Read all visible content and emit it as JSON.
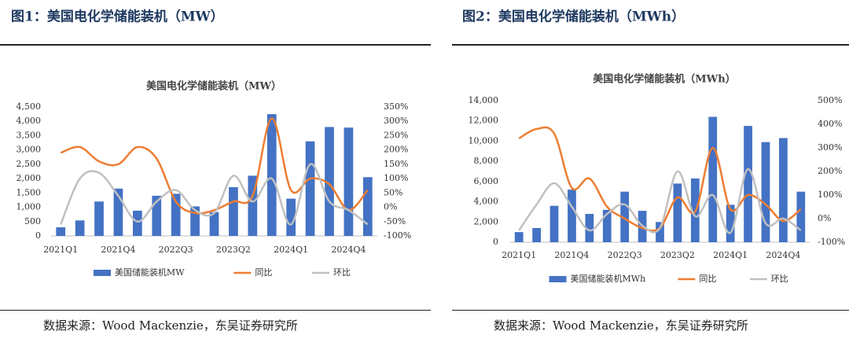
{
  "headings": [
    "图1：美国电化学储能装机（MW）",
    "图2：美国电化学储能装机（MWh）"
  ],
  "sources": [
    "数据来源：Wood Mackenzie，东吴证券研究所",
    "数据来源：Wood Mackenzie，东吴证券研究所"
  ],
  "chart_data": [
    {
      "type": "bar",
      "title": "美国电化学储能装机（MW）",
      "categories": [
        "2021Q1",
        null,
        null,
        "2021Q4",
        null,
        null,
        "2022Q3",
        null,
        null,
        "2023Q2",
        null,
        null,
        "2024Q1",
        null,
        null,
        "2024Q4",
        null
      ],
      "series": [
        {
          "name": "美国储能装机MW",
          "type": "bar",
          "color": "#4472c4",
          "values": [
            300,
            540,
            1200,
            1650,
            880,
            1400,
            1470,
            1030,
            830,
            1700,
            2100,
            4250,
            1300,
            3300,
            3800,
            3780,
            2050
          ]
        },
        {
          "name": "同比",
          "type": "line",
          "axis": "y2",
          "color": "#ed7d31",
          "values": [
            190,
            210,
            160,
            150,
            210,
            170,
            20,
            -20,
            -10,
            20,
            40,
            310,
            60,
            100,
            80,
            -10,
            60
          ]
        },
        {
          "name": "环比",
          "type": "line",
          "axis": "y2",
          "color": "#c0c0c0",
          "values": [
            -60,
            100,
            120,
            40,
            -50,
            20,
            60,
            -10,
            -20,
            110,
            20,
            100,
            -60,
            150,
            20,
            -10,
            -60
          ]
        }
      ],
      "ylim": [
        0,
        4500
      ],
      "yticks": [
        0,
        500,
        {
          "value": 1000,
          "label": "1,000"
        },
        {
          "value": 1500,
          "label": "1,500"
        },
        {
          "value": 2000,
          "label": "2,000"
        },
        {
          "value": 2500,
          "label": "2,500"
        },
        {
          "value": 3000,
          "label": "3,000"
        },
        {
          "value": 3500,
          "label": "3,500"
        },
        {
          "value": 4000,
          "label": "4,000"
        },
        {
          "value": 4500,
          "label": "4,500"
        }
      ],
      "y2lim": [
        -100,
        350
      ],
      "y2ticks": [
        {
          "value": -100,
          "label": "-100%"
        },
        {
          "value": -50,
          "label": "-50%"
        },
        {
          "value": 0,
          "label": "0%"
        },
        {
          "value": 50,
          "label": "50%"
        },
        {
          "value": 100,
          "label": "100%"
        },
        {
          "value": 150,
          "label": "150%"
        },
        {
          "value": 200,
          "label": "200%"
        },
        {
          "value": 250,
          "label": "250%"
        },
        {
          "value": 300,
          "label": "300%"
        },
        {
          "value": 350,
          "label": "350%"
        }
      ],
      "legend": "bottom"
    },
    {
      "type": "bar",
      "title": "美国电化学储能装机（MWh）",
      "categories": [
        "2021Q1",
        null,
        null,
        "2021Q4",
        null,
        null,
        "2022Q3",
        null,
        null,
        "2023Q2",
        null,
        null,
        "2024Q1",
        null,
        null,
        "2024Q4",
        null
      ],
      "series": [
        {
          "name": "美国储能装机MWh",
          "type": "bar",
          "color": "#4472c4",
          "values": [
            1000,
            1400,
            3600,
            5200,
            2800,
            3200,
            5000,
            3100,
            2000,
            5800,
            6300,
            12400,
            3700,
            11500,
            9900,
            10300,
            5000
          ]
        },
        {
          "name": "同比",
          "type": "line",
          "axis": "y2",
          "color": "#ed7d31",
          "values": [
            340,
            380,
            360,
            130,
            170,
            50,
            0,
            -40,
            -40,
            90,
            30,
            300,
            40,
            100,
            60,
            -10,
            40
          ]
        },
        {
          "name": "环比",
          "type": "line",
          "axis": "y2",
          "color": "#c0c0c0",
          "values": [
            -50,
            60,
            150,
            50,
            -50,
            20,
            60,
            -30,
            -40,
            200,
            10,
            100,
            -60,
            210,
            -20,
            0,
            -50
          ]
        }
      ],
      "ylim": [
        0,
        14000
      ],
      "yticks": [
        0,
        {
          "value": 2000,
          "label": "2,000"
        },
        {
          "value": 4000,
          "label": "4,000"
        },
        {
          "value": 6000,
          "label": "6,000"
        },
        {
          "value": 8000,
          "label": "8,000"
        },
        {
          "value": 10000,
          "label": "10,000"
        },
        {
          "value": 12000,
          "label": "12,000"
        },
        {
          "value": 14000,
          "label": "14,000"
        }
      ],
      "y2lim": [
        -100,
        500
      ],
      "y2ticks": [
        {
          "value": -100,
          "label": "-100%"
        },
        {
          "value": 0,
          "label": "0%"
        },
        {
          "value": 100,
          "label": "100%"
        },
        {
          "value": 200,
          "label": "200%"
        },
        {
          "value": 300,
          "label": "300%"
        },
        {
          "value": 400,
          "label": "400%"
        },
        {
          "value": 500,
          "label": "500%"
        }
      ],
      "legend": "bottom"
    }
  ]
}
